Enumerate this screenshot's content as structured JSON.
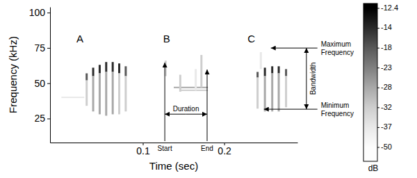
{
  "chart_data": {
    "type": "spectrogram",
    "x_label": "Time (sec)",
    "y_label": "Frequency (kHz)",
    "xlim": [
      -0.014,
      0.29
    ],
    "xticks": [
      0.1,
      0.2
    ],
    "ylim": [
      8,
      104
    ],
    "yticks": [
      25,
      50,
      75,
      100
    ],
    "colorbar": {
      "label": "dB",
      "ticks": [
        -12.4,
        -14,
        -18,
        -23,
        -28,
        -32,
        -37,
        -50
      ]
    },
    "pulses": [
      {
        "t": 0.031,
        "f_min": 52,
        "f_max": 57,
        "db": -18
      },
      {
        "t": 0.039,
        "f_min": 55,
        "f_max": 61,
        "db": -14
      },
      {
        "t": 0.047,
        "f_min": 57,
        "f_max": 63,
        "db": -14
      },
      {
        "t": 0.055,
        "f_min": 58,
        "f_max": 65,
        "db": -14
      },
      {
        "t": 0.063,
        "f_min": 58,
        "f_max": 65,
        "db": -14
      },
      {
        "t": 0.071,
        "f_min": 57,
        "f_max": 64,
        "db": -14
      },
      {
        "t": 0.079,
        "f_min": 55,
        "f_max": 62,
        "db": -18
      },
      {
        "t": 0.031,
        "f_min": 34,
        "f_max": 52,
        "db": -32
      },
      {
        "t": 0.039,
        "f_min": 30,
        "f_max": 55,
        "db": -28
      },
      {
        "t": 0.047,
        "f_min": 28,
        "f_max": 57,
        "db": -28
      },
      {
        "t": 0.055,
        "f_min": 27,
        "f_max": 58,
        "db": -28
      },
      {
        "t": 0.063,
        "f_min": 28,
        "f_max": 58,
        "db": -28
      },
      {
        "t": 0.071,
        "f_min": 28,
        "f_max": 57,
        "db": -32
      },
      {
        "t": 0.079,
        "f_min": 30,
        "f_max": 55,
        "db": -32
      },
      {
        "t": 0.128,
        "f_min": 55,
        "f_max": 66,
        "db": -32
      },
      {
        "t": 0.146,
        "f_min": 44,
        "f_max": 56,
        "db": -32
      },
      {
        "t": 0.165,
        "f_min": 45,
        "f_max": 60,
        "db": -37
      },
      {
        "t": 0.172,
        "f_min": 47,
        "f_max": 70,
        "db": -32
      },
      {
        "t": 0.241,
        "f_min": 54,
        "f_max": 58,
        "db": -18
      },
      {
        "t": 0.25,
        "f_min": 55,
        "f_max": 61,
        "db": -14
      },
      {
        "t": 0.259,
        "f_min": 57,
        "f_max": 62,
        "db": -14
      },
      {
        "t": 0.267,
        "f_min": 57,
        "f_max": 62,
        "db": -14
      },
      {
        "t": 0.276,
        "f_min": 55,
        "f_max": 60,
        "db": -18
      },
      {
        "t": 0.241,
        "f_min": 32,
        "f_max": 54,
        "db": -32
      },
      {
        "t": 0.25,
        "f_min": 30,
        "f_max": 55,
        "db": -28
      },
      {
        "t": 0.259,
        "f_min": 30,
        "f_max": 57,
        "db": -28
      },
      {
        "t": 0.267,
        "f_min": 30,
        "f_max": 57,
        "db": -28
      },
      {
        "t": 0.276,
        "f_min": 33,
        "f_max": 55,
        "db": -32
      },
      {
        "t": 0.245,
        "f_min": 60,
        "f_max": 72,
        "db": -37
      }
    ],
    "bands": [
      {
        "t_start": 0.0,
        "t_end": 0.028,
        "f": 40,
        "db": -37
      },
      {
        "t_start": 0.138,
        "t_end": 0.18,
        "f": 47,
        "db": -28
      },
      {
        "t_start": 0.145,
        "t_end": 0.18,
        "f": 45,
        "db": -32
      }
    ],
    "labels": [
      {
        "text": "A",
        "x": 0.0227,
        "y": 80.8
      },
      {
        "text": "B",
        "x": 0.1293,
        "y": 80.8
      },
      {
        "text": "C",
        "x": 0.2334,
        "y": 80.8
      },
      {
        "text": "Start",
        "x": 0.127,
        "y": 3.5
      },
      {
        "text": "End",
        "x": 0.179,
        "y": 3.5
      },
      {
        "text": "Duration",
        "x": 0.153,
        "y": 31.6
      }
    ],
    "side_labels": [
      {
        "text": "Maximum Frequency",
        "x": 0.3188,
        "y": 74.9
      },
      {
        "text": "Minimum Frequency",
        "x": 0.3188,
        "y": 31.6
      }
    ],
    "vertical_labels": [
      {
        "text": "Bandwidth",
        "x": 0.31,
        "y": 53.3
      }
    ],
    "arrows": [
      {
        "x1": 0.127,
        "y1": 9,
        "x2": 0.127,
        "y2": 64.6
      },
      {
        "x1": 0.179,
        "y1": 9,
        "x2": 0.179,
        "y2": 59.7
      },
      {
        "x1": 0.153,
        "y1": 28.1,
        "x2": 0.127,
        "y2": 28.1
      },
      {
        "x1": 0.153,
        "y1": 28.1,
        "x2": 0.179,
        "y2": 28.1
      },
      {
        "x1": 0.3145,
        "y1": 74.9,
        "x2": 0.2573,
        "y2": 74.9
      },
      {
        "x1": 0.3145,
        "y1": 31.6,
        "x2": 0.2488,
        "y2": 31.6
      },
      {
        "x1": 0.301,
        "y1": 53.3,
        "x2": 0.301,
        "y2": 74.9
      },
      {
        "x1": 0.301,
        "y1": 53.3,
        "x2": 0.301,
        "y2": 31.6
      }
    ]
  }
}
